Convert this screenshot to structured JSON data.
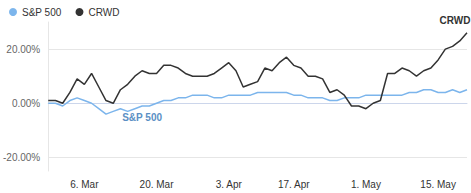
{
  "chart_data": {
    "type": "line",
    "categories": [
      null,
      null,
      null,
      null,
      null,
      "6. Mar",
      null,
      null,
      null,
      null,
      null,
      null,
      null,
      null,
      null,
      "20. Mar",
      null,
      null,
      null,
      null,
      null,
      null,
      null,
      null,
      null,
      "3. Apr",
      null,
      null,
      null,
      null,
      null,
      null,
      null,
      null,
      "17. Apr",
      null,
      null,
      null,
      null,
      null,
      null,
      null,
      null,
      null,
      "1. May",
      null,
      null,
      null,
      null,
      null,
      null,
      null,
      null,
      null,
      "15. May",
      null,
      null,
      null,
      null
    ],
    "series": [
      {
        "name": "S&P 500",
        "color": "#7cb5ec",
        "values": [
          0,
          0,
          -1,
          1,
          2,
          1,
          0,
          -2,
          -4,
          -3,
          -2,
          -3,
          -2,
          -1,
          -1,
          0,
          1,
          1,
          2,
          2,
          3,
          3,
          3,
          2,
          2,
          3,
          3,
          3,
          3,
          4,
          4,
          4,
          4,
          4,
          3,
          3,
          2,
          2,
          2,
          1,
          1,
          2,
          2,
          2,
          3,
          3,
          3,
          3,
          3,
          3,
          4,
          4,
          5,
          5,
          4,
          4,
          5,
          4,
          5
        ]
      },
      {
        "name": "CRWD",
        "color": "#333333",
        "values": [
          1,
          1,
          0,
          4,
          9,
          7,
          11,
          6,
          1,
          0,
          5,
          7,
          10,
          12,
          11,
          11,
          14,
          14,
          13,
          11,
          10,
          10,
          10,
          11,
          13,
          15,
          12,
          6,
          7,
          8,
          13,
          12,
          15,
          17,
          14,
          13,
          10,
          10,
          9,
          4,
          5,
          3,
          -1,
          -1,
          -2,
          0,
          1,
          11,
          11,
          13,
          12,
          10,
          12,
          13,
          16,
          20,
          21,
          23,
          26
        ]
      }
    ],
    "ylim": [
      -25,
      30
    ],
    "yticks": [
      {
        "value": -20,
        "label": "-20.00%"
      },
      {
        "value": 0,
        "label": "0.00%"
      },
      {
        "value": 20,
        "label": "20.00%"
      }
    ],
    "grid": true,
    "legend": "top-left",
    "marker": "none",
    "line_style": "solid"
  }
}
